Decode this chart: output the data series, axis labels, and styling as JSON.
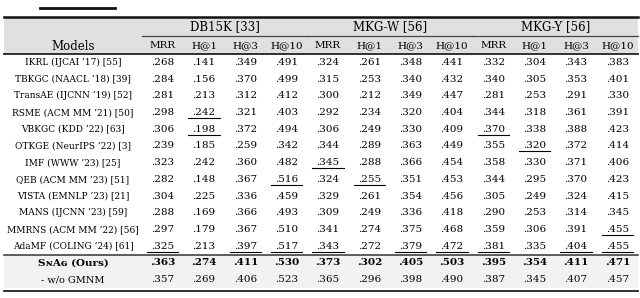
{
  "col_groups": [
    {
      "label": "DB15K [33]",
      "start": 1,
      "end": 4
    },
    {
      "label": "MKG-W [56]",
      "start": 5,
      "end": 8
    },
    {
      "label": "MKG-Y [56]",
      "start": 9,
      "end": 12
    }
  ],
  "sub_cols": [
    "MRR",
    "H@1",
    "H@3",
    "H@10"
  ],
  "rows": [
    {
      "model": "IKRL (IJCAI ’17) [55]",
      "values": [
        ".268",
        ".141",
        ".349",
        ".491",
        ".324",
        ".261",
        ".348",
        ".441",
        ".332",
        ".304",
        ".343",
        ".383"
      ],
      "underline": []
    },
    {
      "model": "TBKGC (NAACL ’18) [39]",
      "values": [
        ".284",
        ".156",
        ".370",
        ".499",
        ".315",
        ".253",
        ".340",
        ".432",
        ".340",
        ".305",
        ".353",
        ".401"
      ],
      "underline": []
    },
    {
      "model": "TransAE (IJCNN ’19) [52]",
      "values": [
        ".281",
        ".213",
        ".312",
        ".412",
        ".300",
        ".212",
        ".349",
        ".447",
        ".281",
        ".253",
        ".291",
        ".330"
      ],
      "underline": []
    },
    {
      "model": "RSME (ACM MM ’21) [50]",
      "values": [
        ".298",
        ".242",
        ".321",
        ".403",
        ".292",
        ".234",
        ".320",
        ".404",
        ".344",
        ".318",
        ".361",
        ".391"
      ],
      "underline": [
        1
      ]
    },
    {
      "model": "VBKGC (KDD ’22) [63]",
      "values": [
        ".306",
        ".198",
        ".372",
        ".494",
        ".306",
        ".249",
        ".330",
        ".409",
        ".370",
        ".338",
        ".388",
        ".423"
      ],
      "underline": [
        1,
        8
      ]
    },
    {
      "model": "OTKGE (NeurIPS ’22) [3]",
      "values": [
        ".239",
        ".185",
        ".259",
        ".342",
        ".344",
        ".289",
        ".363",
        ".449",
        ".355",
        ".320",
        ".372",
        ".414"
      ],
      "underline": [
        9
      ]
    },
    {
      "model": "IMF (WWW ’23) [25]",
      "values": [
        ".323",
        ".242",
        ".360",
        ".482",
        ".345",
        ".288",
        ".366",
        ".454",
        ".358",
        ".330",
        ".371",
        ".406"
      ],
      "underline": [
        4
      ]
    },
    {
      "model": "QEB (ACM MM ’23) [51]",
      "values": [
        ".282",
        ".148",
        ".367",
        ".516",
        ".324",
        ".255",
        ".351",
        ".453",
        ".344",
        ".295",
        ".370",
        ".423"
      ],
      "underline": [
        3,
        5
      ]
    },
    {
      "model": "VISTA (EMNLP ’23) [21]",
      "values": [
        ".304",
        ".225",
        ".336",
        ".459",
        ".329",
        ".261",
        ".354",
        ".456",
        ".305",
        ".249",
        ".324",
        ".415"
      ],
      "underline": []
    },
    {
      "model": "MANS (IJCNN ’23) [59]",
      "values": [
        ".288",
        ".169",
        ".366",
        ".493",
        ".309",
        ".249",
        ".336",
        ".418",
        ".290",
        ".253",
        ".314",
        ".345"
      ],
      "underline": []
    },
    {
      "model": "MMRNS (ACM MM ’22) [56]",
      "values": [
        ".297",
        ".179",
        ".367",
        ".510",
        ".341",
        ".274",
        ".375",
        ".468",
        ".359",
        ".306",
        ".391",
        ".455"
      ],
      "underline": [
        11
      ]
    },
    {
      "model": "AdaMF (COLING ’24) [61]",
      "values": [
        ".325",
        ".213",
        ".397",
        ".517",
        ".343",
        ".272",
        ".379",
        ".472",
        ".381",
        ".335",
        ".404",
        ".455"
      ],
      "underline": [
        0,
        2,
        3,
        4,
        6,
        7,
        8,
        10,
        11
      ]
    }
  ],
  "snag_row": {
    "model": "SɴAɢ (Ours)",
    "values": [
      ".363",
      ".274",
      ".411",
      ".530",
      ".373",
      ".302",
      ".405",
      ".503",
      ".395",
      ".354",
      ".411",
      ".471"
    ]
  },
  "wo_row": {
    "model": "- w/o GMNM",
    "values": [
      ".357",
      ".269",
      ".406",
      ".523",
      ".365",
      ".296",
      ".398",
      ".490",
      ".387",
      ".345",
      ".407",
      ".457"
    ]
  },
  "header_bg": "#e0e0e0",
  "body_bg": "#ffffff",
  "snag_bg": "#efefef"
}
